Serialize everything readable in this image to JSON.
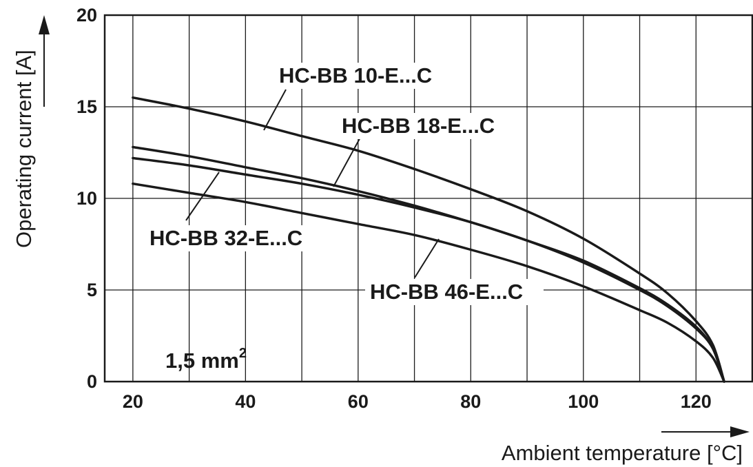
{
  "chart_data": {
    "type": "line",
    "xlabel": "Ambient temperature [°C]",
    "ylabel": "Operating current [A]",
    "xlim": [
      15,
      130
    ],
    "ylim": [
      0,
      20
    ],
    "x_ticks": [
      "20",
      "40",
      "60",
      "80",
      "100",
      "120"
    ],
    "y_ticks": [
      "0",
      "5",
      "10",
      "15",
      "20"
    ],
    "grid": true,
    "note": {
      "text": "1,5 mm",
      "superscript": "2"
    },
    "series": [
      {
        "name": "HC-BB 10-E...C",
        "x": [
          20,
          30,
          40,
          50,
          60,
          70,
          80,
          90,
          100,
          110,
          115,
          120,
          123,
          125
        ],
        "y": [
          15.5,
          14.9,
          14.2,
          13.4,
          12.6,
          11.6,
          10.5,
          9.3,
          7.8,
          5.9,
          4.8,
          3.3,
          2.0,
          0
        ]
      },
      {
        "name": "HC-BB 18-E...C",
        "x": [
          20,
          30,
          40,
          50,
          60,
          70,
          80,
          90,
          100,
          110,
          115,
          120,
          123,
          125
        ],
        "y": [
          12.8,
          12.3,
          11.7,
          11.1,
          10.4,
          9.6,
          8.7,
          7.7,
          6.5,
          5.0,
          4.1,
          2.9,
          1.8,
          0
        ]
      },
      {
        "name": "HC-BB 32-E...C",
        "x": [
          20,
          30,
          40,
          50,
          60,
          70,
          80,
          90,
          100,
          110,
          115,
          120,
          123,
          125
        ],
        "y": [
          12.2,
          11.8,
          11.3,
          10.8,
          10.2,
          9.5,
          8.7,
          7.7,
          6.6,
          5.1,
          4.2,
          3.0,
          1.8,
          0
        ]
      },
      {
        "name": "HC-BB 46-E...C",
        "x": [
          20,
          30,
          40,
          50,
          60,
          70,
          80,
          90,
          100,
          110,
          115,
          120,
          123,
          125
        ],
        "y": [
          10.8,
          10.3,
          9.8,
          9.2,
          8.6,
          8.0,
          7.2,
          6.3,
          5.2,
          3.9,
          3.2,
          2.2,
          1.3,
          0
        ]
      }
    ]
  }
}
